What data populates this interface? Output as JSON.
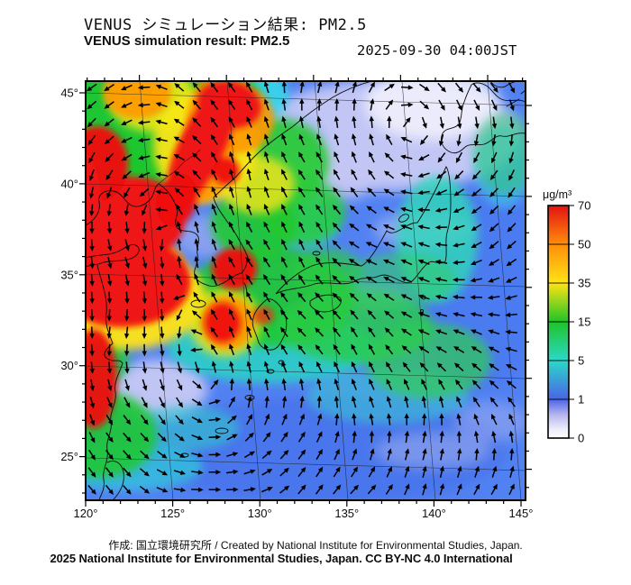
{
  "header": {
    "title_jp": "VENUS シミュレーション結果: PM2.5",
    "title_en": "VENUS simulation result: PM2.5",
    "datetime": "2025-09-30 04:00JST"
  },
  "map": {
    "lat_labels": [
      "45°",
      "40°",
      "35°",
      "30°",
      "25°"
    ],
    "lon_labels": [
      "120°",
      "125°",
      "130°",
      "135°",
      "140°",
      "145°"
    ],
    "lat_values": [
      45,
      40,
      35,
      30,
      25
    ],
    "lon_values": [
      120,
      125,
      130,
      135,
      140,
      145
    ]
  },
  "colorbar": {
    "unit": "μg/m³",
    "tick_labels": [
      "70",
      "50",
      "35",
      "15",
      "5",
      "1",
      "0"
    ],
    "tick_values": [
      70,
      50,
      35,
      15,
      5,
      1,
      0
    ],
    "tick_colors": [
      "#e41212",
      "#ff8d0a",
      "#ffe414",
      "#1fc428",
      "#2cd8c8",
      "#4a64e8",
      "#ffffff"
    ]
  },
  "footer": {
    "credit": "作成: 国立環境研究所 / Created by National Institute for Environmental Studies, Japan.",
    "copyright": "©2025 National Institute for Environmental Studies, Japan. CC BY-NC 4.0 International"
  },
  "chart_data": {
    "type": "heatmap",
    "title": "VENUS simulation result: PM2.5",
    "datetime": "2025-09-30 04:00JST",
    "variable": "PM2.5 concentration",
    "unit": "μg/m³",
    "scale_levels": [
      0,
      1,
      5,
      15,
      35,
      50,
      70
    ],
    "scale_colors": [
      "#ffffff",
      "#4a64e8",
      "#2cd8c8",
      "#1fc428",
      "#ffe414",
      "#ff8d0a",
      "#e41212"
    ],
    "lon_range": [
      120,
      145
    ],
    "lat_range": [
      25,
      45
    ],
    "overlay": "wind vector arrows",
    "notes": "High PM2.5 (red, >70) over eastern China coast and a plume over NE China extending to the Korean peninsula; moderate (green/yellow) over Yellow Sea, Kyushu and western Japan; low (blue/white) over Sea of Japan, northern Japan and the Pacific."
  }
}
